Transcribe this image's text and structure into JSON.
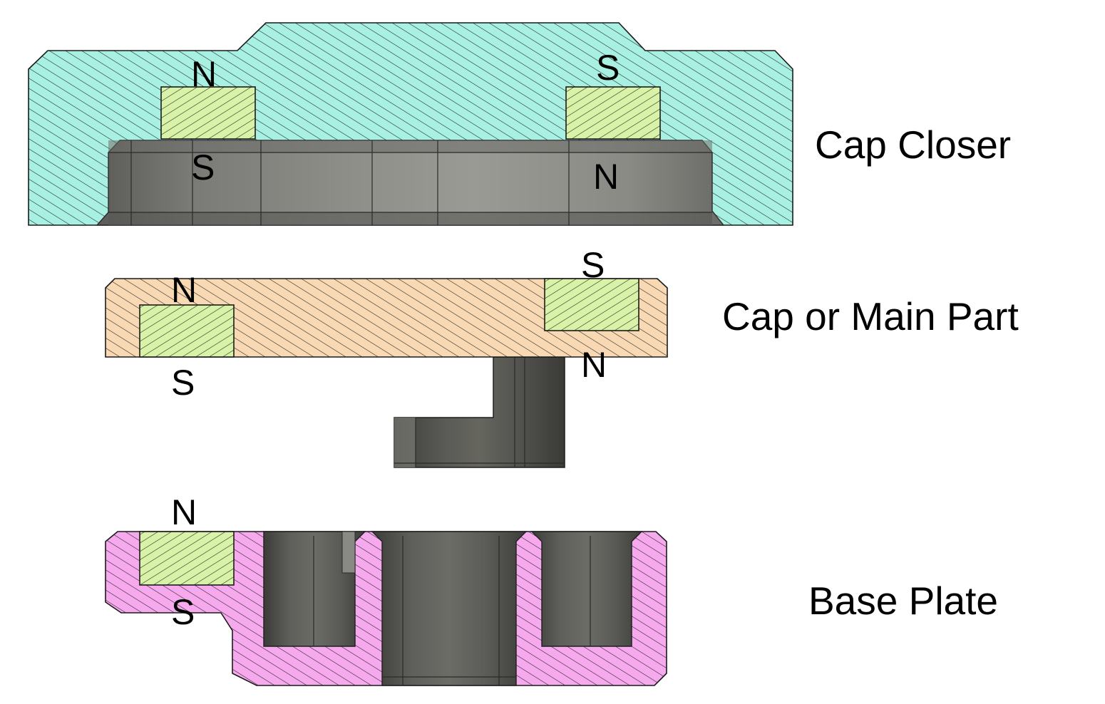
{
  "parts": {
    "cap_closer": {
      "label": "Cap Closer",
      "fill": "#a8f0e2"
    },
    "cap_main": {
      "label": "Cap or Main Part",
      "fill": "#f8d9b4"
    },
    "base_plate": {
      "label": "Base Plate",
      "fill": "#f7a9ee"
    }
  },
  "magnet_fill": "#d8f2a8",
  "solid_fill": "#6e6e6a",
  "poles": {
    "closer_left_top": "N",
    "closer_left_bottom": "S",
    "closer_right_top": "S",
    "closer_right_bottom": "N",
    "main_left_top": "N",
    "main_left_bottom": "S",
    "main_right_top": "S",
    "main_right_bottom": "N",
    "base_left_top": "N",
    "base_left_bottom": "S"
  }
}
